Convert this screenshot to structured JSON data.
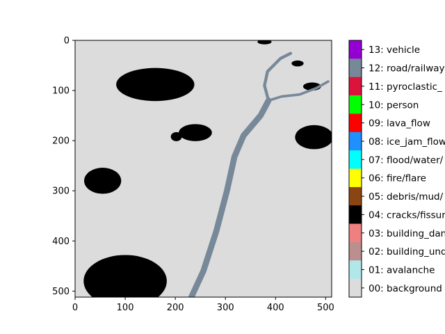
{
  "chart_data": {
    "type": "heatmap",
    "subtype": "segmentation-mask",
    "title": "",
    "xlabel": "",
    "ylabel": "",
    "image_size": [
      512,
      512
    ],
    "xlim": [
      0,
      512
    ],
    "ylim": [
      512,
      0
    ],
    "x_ticks": [
      0,
      100,
      200,
      300,
      400,
      500
    ],
    "y_ticks": [
      0,
      100,
      200,
      300,
      400,
      500
    ],
    "x_tick_labels": [
      "0",
      "100",
      "200",
      "300",
      "400",
      "500"
    ],
    "y_tick_labels": [
      "0",
      "100",
      "200",
      "300",
      "400",
      "500"
    ],
    "grid": false,
    "colorbar": {
      "position": "right",
      "classes": [
        {
          "id": 0,
          "label": "00: background",
          "color": "#dcdcdc"
        },
        {
          "id": 1,
          "label": "01: avalanche",
          "color": "#b0e8ea"
        },
        {
          "id": 2,
          "label": "02: building_und",
          "color": "#bc8f8f"
        },
        {
          "id": 3,
          "label": "03: building_dan",
          "color": "#f08080"
        },
        {
          "id": 4,
          "label": "04: cracks/fissur",
          "color": "#000000"
        },
        {
          "id": 5,
          "label": "05: debris/mud/",
          "color": "#8b4513"
        },
        {
          "id": 6,
          "label": "06: fire/flare",
          "color": "#ffff00"
        },
        {
          "id": 7,
          "label": "07: flood/water/",
          "color": "#00ffff"
        },
        {
          "id": 8,
          "label": "08: ice_jam_flow",
          "color": "#1e90ff"
        },
        {
          "id": 9,
          "label": "09: lava_flow",
          "color": "#ff0000"
        },
        {
          "id": 10,
          "label": "10: person",
          "color": "#00ff00"
        },
        {
          "id": 11,
          "label": "11: pyroclastic_",
          "color": "#dc143c"
        },
        {
          "id": 12,
          "label": "12: road/railway",
          "color": "#778899"
        },
        {
          "id": 13,
          "label": "13: vehicle",
          "color": "#9400d3"
        }
      ]
    },
    "regions": [
      {
        "class": 4,
        "shape": "blob",
        "center": [
          160,
          88
        ],
        "radii": [
          78,
          33
        ]
      },
      {
        "class": 4,
        "shape": "blob",
        "center": [
          240,
          184
        ],
        "radii": [
          33,
          17
        ]
      },
      {
        "class": 4,
        "shape": "blob",
        "center": [
          202,
          192
        ],
        "radii": [
          11,
          9
        ]
      },
      {
        "class": 4,
        "shape": "blob",
        "center": [
          55,
          280
        ],
        "radii": [
          37,
          26
        ]
      },
      {
        "class": 4,
        "shape": "blob",
        "center": [
          100,
          480
        ],
        "radii": [
          83,
          52
        ]
      },
      {
        "class": 4,
        "shape": "blob",
        "center": [
          477,
          193
        ],
        "radii": [
          38,
          24
        ]
      },
      {
        "class": 4,
        "shape": "blob",
        "center": [
          378,
          3
        ],
        "radii": [
          14,
          5
        ]
      },
      {
        "class": 4,
        "shape": "blob",
        "center": [
          444,
          46
        ],
        "radii": [
          12,
          6
        ]
      },
      {
        "class": 4,
        "shape": "blob",
        "center": [
          473,
          92
        ],
        "radii": [
          18,
          8
        ]
      },
      {
        "class": 12,
        "shape": "road-path",
        "width": 12,
        "path": [
          [
            232,
            512
          ],
          [
            256,
            460
          ],
          [
            282,
            380
          ],
          [
            303,
            300
          ],
          [
            318,
            232
          ],
          [
            336,
            190
          ],
          [
            370,
            150
          ],
          [
            386,
            120
          ]
        ]
      },
      {
        "class": 12,
        "shape": "road-path",
        "width": 6,
        "path": [
          [
            386,
            120
          ],
          [
            378,
            90
          ],
          [
            384,
            62
          ],
          [
            410,
            36
          ],
          [
            430,
            26
          ]
        ]
      },
      {
        "class": 12,
        "shape": "road-path",
        "width": 5,
        "path": [
          [
            386,
            120
          ],
          [
            412,
            112
          ],
          [
            448,
            108
          ],
          [
            482,
            95
          ],
          [
            505,
            82
          ]
        ]
      }
    ]
  }
}
